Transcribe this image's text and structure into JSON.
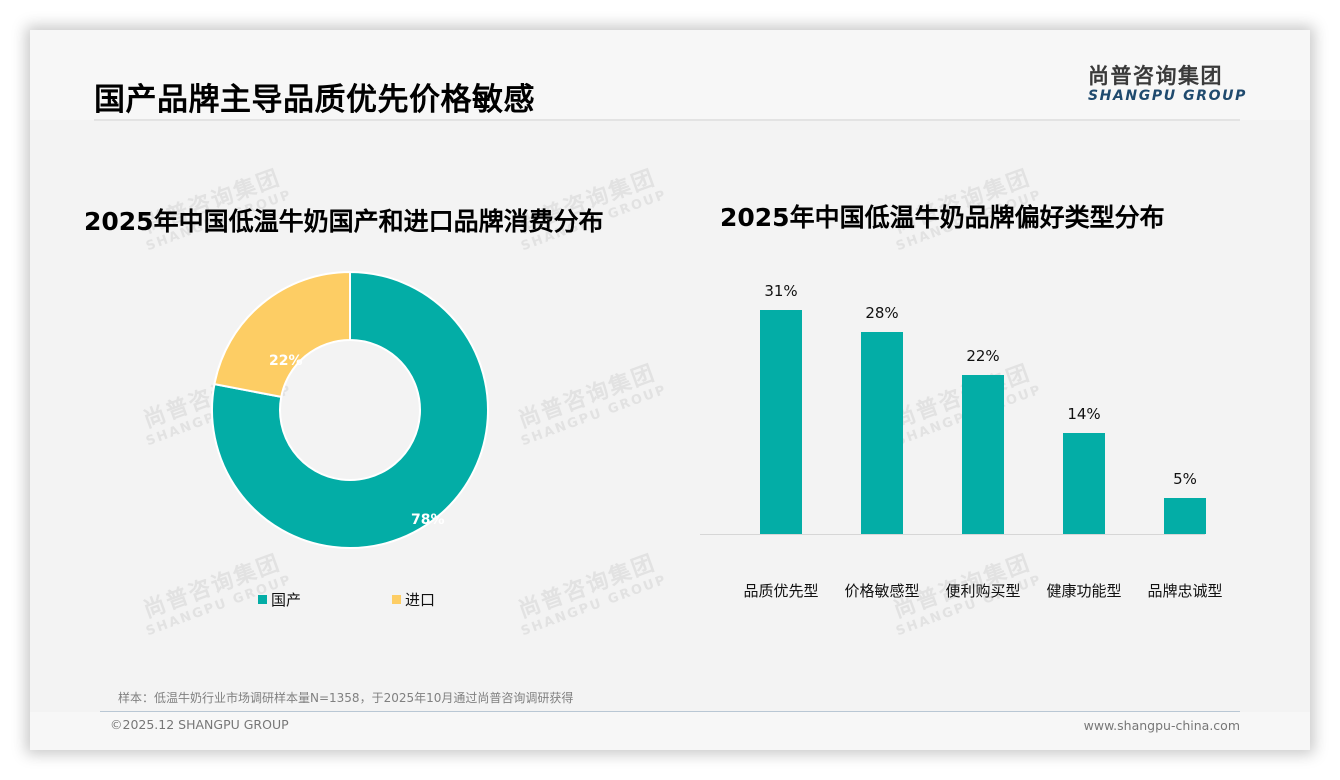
{
  "header": {
    "title": "国产品牌主导品质优先价格敏感",
    "logo_cn": "尚普咨询集团",
    "logo_en": "SHANGPU GROUP"
  },
  "watermark": {
    "cn": "尚普咨询集团",
    "en": "SHANGPU GROUP"
  },
  "left_chart": {
    "title": "2025年中国低温牛奶国产和进口品牌消费分布",
    "slices": [
      {
        "label": "国产",
        "value": 78,
        "display": "78%",
        "color": "#03ADA6"
      },
      {
        "label": "进口",
        "value": 22,
        "display": "22%",
        "color": "#FDCD64"
      }
    ],
    "legend": [
      {
        "label": "国产",
        "color": "#03ADA6"
      },
      {
        "label": "进口",
        "color": "#FDCD64"
      }
    ]
  },
  "right_chart": {
    "title": "2025年中国低温牛奶品牌偏好类型分布",
    "bar_color": "#03ADA6",
    "bars": [
      {
        "label": "品质优先型",
        "value": 31,
        "display": "31%"
      },
      {
        "label": "价格敏感型",
        "value": 28,
        "display": "28%"
      },
      {
        "label": "便利购买型",
        "value": 22,
        "display": "22%"
      },
      {
        "label": "健康功能型",
        "value": 14,
        "display": "14%"
      },
      {
        "label": "品牌忠诚型",
        "value": 5,
        "display": "5%"
      }
    ]
  },
  "footer": {
    "note": "样本：低温牛奶行业市场调研样本量N=1358，于2025年10月通过尚普咨询调研获得",
    "copyright": "©2025.12 SHANGPU GROUP",
    "website": "www.shangpu-china.com"
  },
  "chart_data": [
    {
      "type": "pie",
      "title": "2025年中国低温牛奶国产和进口品牌消费分布",
      "categories": [
        "国产",
        "进口"
      ],
      "values": [
        78,
        22
      ],
      "unit": "%",
      "hole": true,
      "legend_position": "bottom",
      "colors": [
        "#03ADA6",
        "#FDCD64"
      ]
    },
    {
      "type": "bar",
      "title": "2025年中国低温牛奶品牌偏好类型分布",
      "categories": [
        "品质优先型",
        "价格敏感型",
        "便利购买型",
        "健康功能型",
        "品牌忠诚型"
      ],
      "values": [
        31,
        28,
        22,
        14,
        5
      ],
      "unit": "%",
      "xlabel": "",
      "ylabel": "",
      "ylim": [
        0,
        35
      ],
      "grid": false,
      "data_labels": true,
      "colors": [
        "#03ADA6"
      ]
    }
  ]
}
